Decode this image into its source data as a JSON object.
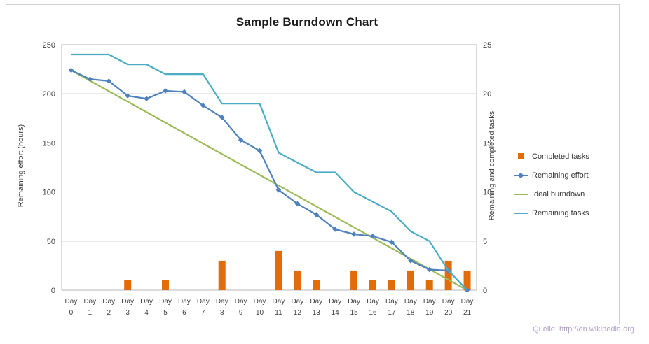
{
  "chart_data": {
    "type": "composite",
    "title": "Sample Burndown Chart",
    "legend_position": "right",
    "gridlines": "horizontal",
    "categories": [
      "Day 0",
      "Day 1",
      "Day 2",
      "Day 3",
      "Day 4",
      "Day 5",
      "Day 6",
      "Day 7",
      "Day 8",
      "Day 9",
      "Day 10",
      "Day 11",
      "Day 12",
      "Day 13",
      "Day 14",
      "Day 15",
      "Day 16",
      "Day 17",
      "Day 18",
      "Day 19",
      "Day 20",
      "Day 21"
    ],
    "left_axis": {
      "label": "Remaining effort (hours)",
      "min": 0,
      "max": 250,
      "ticks": [
        0,
        50,
        100,
        150,
        200,
        250
      ]
    },
    "right_axis": {
      "label": "Remaining and completed tasks",
      "min": 0,
      "max": 25,
      "ticks": [
        0,
        5,
        10,
        15,
        20,
        25
      ]
    },
    "series": [
      {
        "key": "completed-tasks",
        "name": "Completed tasks",
        "type": "bar",
        "axis": "right",
        "color": "#E36C0A",
        "values": [
          0,
          0,
          0,
          1,
          0,
          1,
          0,
          0,
          3,
          0,
          0,
          4,
          2,
          1,
          0,
          2,
          1,
          1,
          2,
          1,
          3,
          2
        ]
      },
      {
        "key": "remaining-effort",
        "name": "Remaining effort",
        "type": "line",
        "marker": "diamond",
        "axis": "left",
        "color": "#4F81BD",
        "values": [
          224,
          215,
          213,
          198,
          195,
          203,
          202,
          188,
          176,
          153,
          142,
          102,
          88,
          77,
          62,
          57,
          55,
          49,
          30,
          21,
          20,
          0
        ]
      },
      {
        "key": "ideal-burndown",
        "name": "Ideal burndown",
        "type": "line",
        "axis": "left",
        "color": "#9BBB59",
        "x": [
          0,
          21
        ],
        "values": [
          224,
          0
        ]
      },
      {
        "key": "remaining-tasks",
        "name": "Remaining tasks",
        "type": "line",
        "axis": "right",
        "color": "#4BACC6",
        "values": [
          24,
          24,
          24,
          23,
          23,
          22,
          22,
          22,
          19,
          19,
          19,
          14,
          13,
          12,
          12,
          10,
          9,
          8,
          6,
          5,
          2,
          0
        ]
      }
    ]
  },
  "source": "Quelle: http://en.wikipedia.org"
}
